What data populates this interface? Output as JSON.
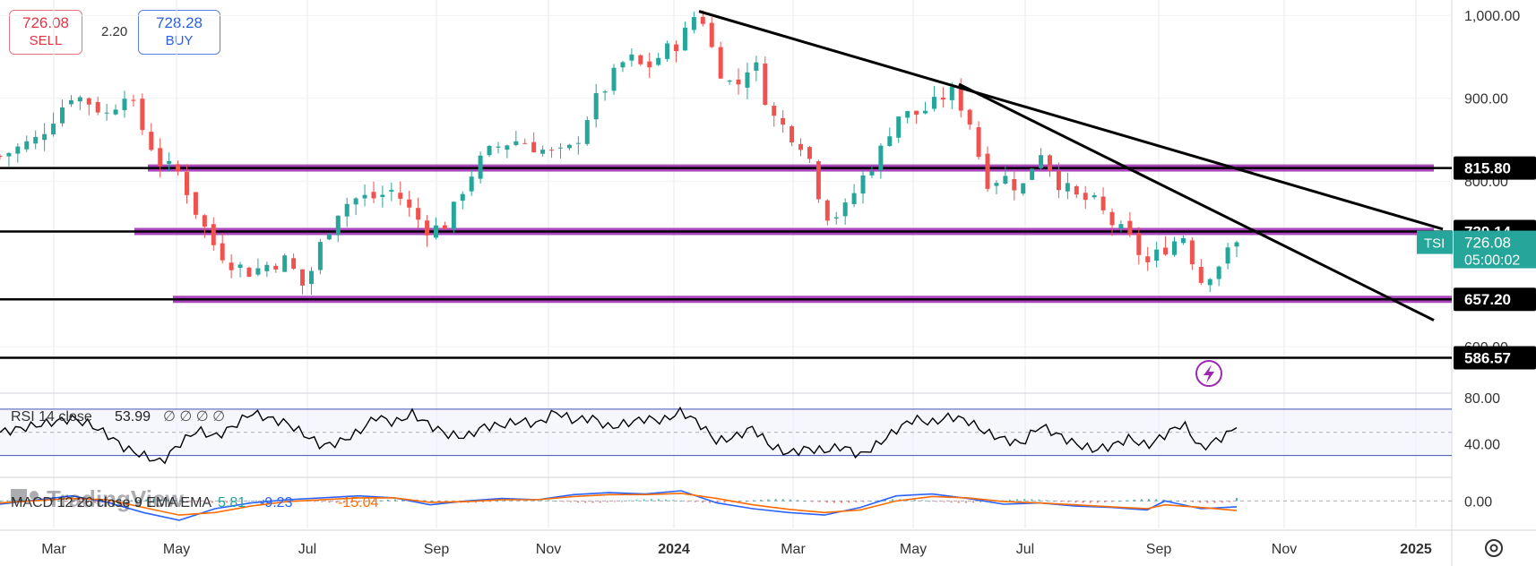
{
  "trade_widget": {
    "sell": {
      "price": "726.08",
      "label": "SELL"
    },
    "spread": "2.20",
    "buy": {
      "price": "728.28",
      "label": "BUY"
    }
  },
  "colors": {
    "up": "#26a69a",
    "down": "#ef5350",
    "zone": "#9c27b0",
    "trend": "#000000",
    "price_tag": "#26a69a",
    "rsi": "#000000",
    "macd": "#2962ff",
    "signal": "#ff6d00",
    "rsi_band": "#3f51b5"
  },
  "chart_data": [
    {
      "type": "candlestick",
      "price_axis": {
        "ticks": [
          "1,000.00",
          "900.00",
          "800.00",
          "600.00"
        ],
        "ylim": [
          545,
          1010
        ]
      },
      "time_axis": {
        "ticks": [
          "Mar",
          "May",
          "Jul",
          "Sep",
          "Nov",
          "2024",
          "Mar",
          "May",
          "Jul",
          "Sep",
          "Nov",
          "2025"
        ],
        "xlim": [
          0,
          81
        ]
      },
      "close_path": [
        [
          0,
          830
        ],
        [
          2,
          850
        ],
        [
          4,
          905
        ],
        [
          5,
          895
        ],
        [
          6,
          880
        ],
        [
          7,
          910
        ],
        [
          8,
          860
        ],
        [
          9,
          820
        ],
        [
          10,
          810
        ],
        [
          11,
          760
        ],
        [
          12,
          720
        ],
        [
          13,
          700
        ],
        [
          14,
          690
        ],
        [
          15,
          700
        ],
        [
          16,
          705
        ],
        [
          17,
          670
        ],
        [
          18,
          730
        ],
        [
          19,
          770
        ],
        [
          20,
          780
        ],
        [
          21,
          780
        ],
        [
          22,
          790
        ],
        [
          23,
          760
        ],
        [
          24,
          740
        ],
        [
          25,
          750
        ],
        [
          26,
          800
        ],
        [
          27,
          830
        ],
        [
          28,
          845
        ],
        [
          29,
          850
        ],
        [
          30,
          840
        ],
        [
          31,
          830
        ],
        [
          32,
          840
        ],
        [
          33,
          890
        ],
        [
          34,
          920
        ],
        [
          35,
          950
        ],
        [
          36,
          935
        ],
        [
          37,
          955
        ],
        [
          38,
          970
        ],
        [
          39,
          1010
        ],
        [
          40,
          940
        ],
        [
          41,
          910
        ],
        [
          42,
          950
        ],
        [
          43,
          880
        ],
        [
          44,
          860
        ],
        [
          45,
          840
        ],
        [
          46,
          760
        ],
        [
          47,
          760
        ],
        [
          48,
          800
        ],
        [
          49,
          830
        ],
        [
          50,
          880
        ],
        [
          51,
          880
        ],
        [
          52,
          890
        ],
        [
          53,
          910
        ],
        [
          54,
          880
        ],
        [
          55,
          800
        ],
        [
          56,
          805
        ],
        [
          57,
          790
        ],
        [
          58,
          840
        ],
        [
          59,
          800
        ],
        [
          60,
          780
        ],
        [
          61,
          775
        ],
        [
          62,
          750
        ],
        [
          63,
          730
        ],
        [
          64,
          700
        ],
        [
          65,
          720
        ],
        [
          66,
          735
        ],
        [
          67,
          680
        ],
        [
          68,
          700
        ],
        [
          69,
          726
        ]
      ],
      "candle_count": 140,
      "horizontal_levels": [
        {
          "label": "815.80",
          "value": 815.8
        },
        {
          "label": "739.14",
          "value": 739.14
        },
        {
          "label": "657.20",
          "value": 657.2
        },
        {
          "label": "586.57",
          "value": 586.57
        }
      ],
      "price_tag": {
        "symbol": "TSI",
        "price": "726.08",
        "countdown": "05:00:02"
      },
      "trend_lines": [
        {
          "from": [
            39,
            1005
          ],
          "to": [
            80.5,
            742
          ]
        },
        {
          "from": [
            53.5,
            917
          ],
          "to": [
            80,
            632
          ]
        }
      ]
    },
    {
      "type": "line",
      "legend": {
        "label": "RSI 14 close",
        "value": "53.99",
        "extra": "∅ ∅ ∅ ∅"
      },
      "ticks": [
        "80.00",
        "40.00"
      ],
      "bands": [
        70,
        50,
        30
      ],
      "ylim": [
        15,
        80
      ],
      "path": [
        [
          0,
          50
        ],
        [
          2,
          56
        ],
        [
          4,
          62
        ],
        [
          5,
          57
        ],
        [
          6,
          48
        ],
        [
          7,
          36
        ],
        [
          8,
          30
        ],
        [
          9,
          24
        ],
        [
          10,
          40
        ],
        [
          11,
          52
        ],
        [
          12,
          46
        ],
        [
          13,
          55
        ],
        [
          14,
          67
        ],
        [
          15,
          62
        ],
        [
          16,
          58
        ],
        [
          17,
          48
        ],
        [
          18,
          38
        ],
        [
          19,
          42
        ],
        [
          20,
          50
        ],
        [
          21,
          64
        ],
        [
          22,
          58
        ],
        [
          23,
          66
        ],
        [
          24,
          56
        ],
        [
          25,
          48
        ],
        [
          26,
          46
        ],
        [
          27,
          55
        ],
        [
          28,
          56
        ],
        [
          29,
          60
        ],
        [
          30,
          57
        ],
        [
          31,
          68
        ],
        [
          32,
          60
        ],
        [
          33,
          63
        ],
        [
          34,
          54
        ],
        [
          35,
          58
        ],
        [
          36,
          62
        ],
        [
          37,
          60
        ],
        [
          38,
          68
        ],
        [
          39,
          58
        ],
        [
          40,
          42
        ],
        [
          41,
          46
        ],
        [
          42,
          54
        ],
        [
          43,
          38
        ],
        [
          44,
          32
        ],
        [
          45,
          36
        ],
        [
          46,
          34
        ],
        [
          47,
          38
        ],
        [
          48,
          30
        ],
        [
          49,
          40
        ],
        [
          50,
          52
        ],
        [
          51,
          62
        ],
        [
          52,
          58
        ],
        [
          53,
          64
        ],
        [
          54,
          60
        ],
        [
          55,
          50
        ],
        [
          56,
          44
        ],
        [
          57,
          40
        ],
        [
          58,
          56
        ],
        [
          59,
          48
        ],
        [
          60,
          40
        ],
        [
          61,
          35
        ],
        [
          62,
          38
        ],
        [
          63,
          45
        ],
        [
          64,
          38
        ],
        [
          65,
          48
        ],
        [
          66,
          58
        ],
        [
          67,
          36
        ],
        [
          68,
          44
        ],
        [
          69,
          54
        ]
      ]
    },
    {
      "type": "line",
      "legend": {
        "label": "MACD 12 26 close 9 EMA EMA",
        "histogram": "5.81",
        "macd": "-9.23",
        "signal": "-15.04"
      },
      "ticks": [
        "0.00"
      ],
      "ylim": [
        -40,
        30
      ],
      "macd_path": [
        [
          0,
          -5
        ],
        [
          4,
          8
        ],
        [
          6,
          -2
        ],
        [
          8,
          -18
        ],
        [
          10,
          -30
        ],
        [
          12,
          -12
        ],
        [
          14,
          -3
        ],
        [
          16,
          2
        ],
        [
          20,
          8
        ],
        [
          22,
          5
        ],
        [
          24,
          -6
        ],
        [
          26,
          0
        ],
        [
          28,
          4
        ],
        [
          30,
          2
        ],
        [
          32,
          10
        ],
        [
          34,
          13
        ],
        [
          36,
          11
        ],
        [
          38,
          16
        ],
        [
          40,
          -3
        ],
        [
          42,
          -12
        ],
        [
          44,
          -18
        ],
        [
          46,
          -22
        ],
        [
          48,
          -10
        ],
        [
          50,
          8
        ],
        [
          52,
          11
        ],
        [
          54,
          4
        ],
        [
          56,
          -5
        ],
        [
          58,
          -3
        ],
        [
          60,
          -8
        ],
        [
          62,
          -10
        ],
        [
          64,
          -14
        ],
        [
          65,
          0
        ],
        [
          67,
          -12
        ],
        [
          69,
          -9
        ]
      ],
      "signal_path": [
        [
          0,
          -3
        ],
        [
          4,
          4
        ],
        [
          6,
          2
        ],
        [
          8,
          -10
        ],
        [
          10,
          -22
        ],
        [
          12,
          -18
        ],
        [
          14,
          -8
        ],
        [
          16,
          -1
        ],
        [
          20,
          5
        ],
        [
          22,
          5
        ],
        [
          24,
          -2
        ],
        [
          26,
          -1
        ],
        [
          28,
          2
        ],
        [
          30,
          2
        ],
        [
          32,
          7
        ],
        [
          34,
          10
        ],
        [
          36,
          10
        ],
        [
          38,
          12
        ],
        [
          40,
          4
        ],
        [
          42,
          -6
        ],
        [
          44,
          -13
        ],
        [
          46,
          -18
        ],
        [
          48,
          -14
        ],
        [
          50,
          0
        ],
        [
          52,
          7
        ],
        [
          54,
          5
        ],
        [
          56,
          -1
        ],
        [
          58,
          -3
        ],
        [
          60,
          -6
        ],
        [
          62,
          -9
        ],
        [
          64,
          -12
        ],
        [
          65,
          -6
        ],
        [
          67,
          -10
        ],
        [
          69,
          -15
        ]
      ]
    }
  ],
  "icons": {
    "lightning": "lightning-icon",
    "settings": "gear-icon",
    "watermark": "tradingview-logo"
  },
  "watermark_text": "TradingView"
}
